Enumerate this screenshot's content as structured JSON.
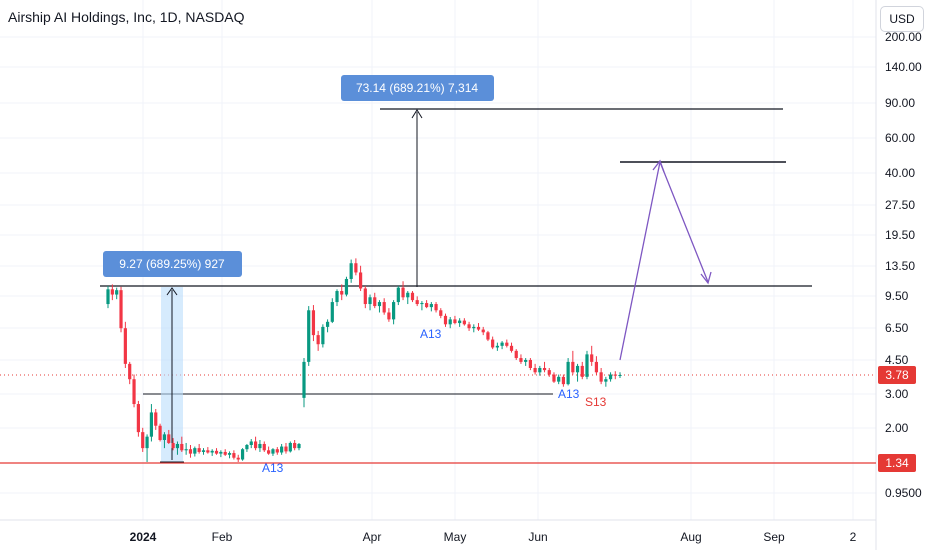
{
  "header": {
    "title": "Airship AI Holdings, Inc, 1D, NASDAQ",
    "currency": "USD"
  },
  "chart_data": {
    "type": "candlestick",
    "title": "Airship AI Holdings, Inc, 1D, NASDAQ",
    "y_scale": "log",
    "y_ticks": [
      "200.00",
      "140.00",
      "90.00",
      "60.00",
      "40.00",
      "27.50",
      "19.50",
      "13.50",
      "9.50",
      "6.50",
      "4.50",
      "3.00",
      "2.00",
      "1.34",
      "0.9500"
    ],
    "x_ticks": [
      "2024",
      "Feb",
      "Apr",
      "May",
      "Jun",
      "Aug",
      "Sep",
      "2"
    ],
    "last_price": "3.78",
    "support_line": "1.34",
    "measures": [
      {
        "label": "9.27 (689.25%) 927"
      },
      {
        "label": "73.14 (689.21%) 7,314"
      }
    ],
    "markers": [
      {
        "text": "A13",
        "color": "#2962ff"
      },
      {
        "text": "A13",
        "color": "#2962ff"
      },
      {
        "text": "A13",
        "color": "#2962ff"
      },
      {
        "text": "S13",
        "color": "#e53935"
      }
    ],
    "candles": [
      [
        8.6,
        10.6,
        8.2,
        10.2
      ],
      [
        10.2,
        10.8,
        9.0,
        9.6
      ],
      [
        9.6,
        10.4,
        9.1,
        10.1
      ],
      [
        10.1,
        10.5,
        6.2,
        6.5
      ],
      [
        6.5,
        7.0,
        4.1,
        4.3
      ],
      [
        4.3,
        4.4,
        3.4,
        3.6
      ],
      [
        3.6,
        3.8,
        2.6,
        2.7
      ],
      [
        2.7,
        2.8,
        1.85,
        1.95
      ],
      [
        1.95,
        2.05,
        1.55,
        1.62
      ],
      [
        1.62,
        1.9,
        1.38,
        1.85
      ],
      [
        1.85,
        2.7,
        1.75,
        2.45
      ],
      [
        2.45,
        2.55,
        2.0,
        2.1
      ],
      [
        2.1,
        2.15,
        1.75,
        1.78
      ],
      [
        1.78,
        1.95,
        1.62,
        1.9
      ],
      [
        1.9,
        2.0,
        1.7,
        1.72
      ],
      [
        1.72,
        1.82,
        1.58,
        1.62
      ],
      [
        1.62,
        1.75,
        1.5,
        1.7
      ],
      [
        1.7,
        1.85,
        1.55,
        1.58
      ],
      [
        1.58,
        1.72,
        1.5,
        1.6
      ],
      [
        1.6,
        1.68,
        1.45,
        1.52
      ],
      [
        1.52,
        1.65,
        1.47,
        1.62
      ],
      [
        1.62,
        1.7,
        1.52,
        1.55
      ],
      [
        1.55,
        1.62,
        1.5,
        1.58
      ],
      [
        1.58,
        1.64,
        1.52,
        1.54
      ],
      [
        1.54,
        1.6,
        1.48,
        1.57
      ],
      [
        1.57,
        1.62,
        1.5,
        1.52
      ],
      [
        1.52,
        1.58,
        1.46,
        1.55
      ],
      [
        1.55,
        1.6,
        1.48,
        1.5
      ],
      [
        1.5,
        1.56,
        1.44,
        1.53
      ],
      [
        1.53,
        1.58,
        1.42,
        1.45
      ],
      [
        1.45,
        1.5,
        1.38,
        1.42
      ],
      [
        1.42,
        1.62,
        1.4,
        1.6
      ],
      [
        1.6,
        1.7,
        1.55,
        1.68
      ],
      [
        1.68,
        1.8,
        1.62,
        1.75
      ],
      [
        1.75,
        1.85,
        1.58,
        1.62
      ],
      [
        1.62,
        1.78,
        1.55,
        1.7
      ],
      [
        1.7,
        1.75,
        1.55,
        1.58
      ],
      [
        1.58,
        1.65,
        1.5,
        1.52
      ],
      [
        1.52,
        1.62,
        1.48,
        1.6
      ],
      [
        1.6,
        1.64,
        1.5,
        1.54
      ],
      [
        1.54,
        1.7,
        1.5,
        1.65
      ],
      [
        1.65,
        1.72,
        1.52,
        1.56
      ],
      [
        1.56,
        1.75,
        1.54,
        1.72
      ],
      [
        1.72,
        1.78,
        1.58,
        1.62
      ],
      [
        1.62,
        1.72,
        1.58,
        1.7
      ],
      [
        2.9,
        4.6,
        2.6,
        4.4
      ],
      [
        4.4,
        8.4,
        4.2,
        8.0
      ],
      [
        8.0,
        8.5,
        5.6,
        6.0
      ],
      [
        6.0,
        6.3,
        5.0,
        5.4
      ],
      [
        5.4,
        6.8,
        5.2,
        6.6
      ],
      [
        6.6,
        7.2,
        6.2,
        7.0
      ],
      [
        7.0,
        9.2,
        6.9,
        8.8
      ],
      [
        8.8,
        10.2,
        8.4,
        10.0
      ],
      [
        10.0,
        10.8,
        9.0,
        9.6
      ],
      [
        9.6,
        11.8,
        9.4,
        11.5
      ],
      [
        11.5,
        14.4,
        11.0,
        13.8
      ],
      [
        13.8,
        14.6,
        12.0,
        12.4
      ],
      [
        12.4,
        13.4,
        10.0,
        10.3
      ],
      [
        10.3,
        10.6,
        8.2,
        8.6
      ],
      [
        8.6,
        9.6,
        8.0,
        9.3
      ],
      [
        9.3,
        9.8,
        8.2,
        8.4
      ],
      [
        8.4,
        9.0,
        7.8,
        8.8
      ],
      [
        8.8,
        9.2,
        7.6,
        7.8
      ],
      [
        7.8,
        8.2,
        7.0,
        7.2
      ],
      [
        7.2,
        9.0,
        6.8,
        8.8
      ],
      [
        8.8,
        10.6,
        8.5,
        10.4
      ],
      [
        10.4,
        11.2,
        9.0,
        9.3
      ],
      [
        9.3,
        10.0,
        8.6,
        9.8
      ],
      [
        9.8,
        10.0,
        8.8,
        9.0
      ],
      [
        9.0,
        9.4,
        8.4,
        8.6
      ],
      [
        8.6,
        8.9,
        8.0,
        8.7
      ],
      [
        8.7,
        9.0,
        8.2,
        8.3
      ],
      [
        8.3,
        8.8,
        7.9,
        8.6
      ],
      [
        8.6,
        8.8,
        7.8,
        8.0
      ],
      [
        8.0,
        8.2,
        7.3,
        7.5
      ],
      [
        7.5,
        7.7,
        6.6,
        6.8
      ],
      [
        6.8,
        7.4,
        6.5,
        7.2
      ],
      [
        7.2,
        7.5,
        6.8,
        6.9
      ],
      [
        6.9,
        7.3,
        6.6,
        7.1
      ],
      [
        7.1,
        7.3,
        6.7,
        6.8
      ],
      [
        6.8,
        7.0,
        6.3,
        6.5
      ],
      [
        6.5,
        6.8,
        6.2,
        6.6
      ],
      [
        6.6,
        6.9,
        6.3,
        6.4
      ],
      [
        6.4,
        6.6,
        6.0,
        6.2
      ],
      [
        6.2,
        6.3,
        5.6,
        5.7
      ],
      [
        5.7,
        5.9,
        5.1,
        5.2
      ],
      [
        5.2,
        5.5,
        5.0,
        5.3
      ],
      [
        5.3,
        5.6,
        5.1,
        5.5
      ],
      [
        5.5,
        5.7,
        5.2,
        5.3
      ],
      [
        5.3,
        5.5,
        4.9,
        5.0
      ],
      [
        5.0,
        5.1,
        4.5,
        4.6
      ],
      [
        4.6,
        4.8,
        4.3,
        4.4
      ],
      [
        4.4,
        4.6,
        4.2,
        4.5
      ],
      [
        4.5,
        4.6,
        4.0,
        4.1
      ],
      [
        4.1,
        4.3,
        3.8,
        3.9
      ],
      [
        3.9,
        4.2,
        3.75,
        4.1
      ],
      [
        4.1,
        4.4,
        3.9,
        4.0
      ],
      [
        4.0,
        4.1,
        3.7,
        3.8
      ],
      [
        3.8,
        3.9,
        3.45,
        3.5
      ],
      [
        3.5,
        3.8,
        3.4,
        3.7
      ],
      [
        3.7,
        3.8,
        3.3,
        3.4
      ],
      [
        3.4,
        4.6,
        3.35,
        4.4
      ],
      [
        4.4,
        5.0,
        3.8,
        3.9
      ],
      [
        3.9,
        4.3,
        3.5,
        4.2
      ],
      [
        4.2,
        4.4,
        3.6,
        3.7
      ],
      [
        3.7,
        5.0,
        3.6,
        4.8
      ],
      [
        4.8,
        5.3,
        4.2,
        4.4
      ],
      [
        4.4,
        4.7,
        3.8,
        3.9
      ],
      [
        3.9,
        4.1,
        3.4,
        3.5
      ],
      [
        3.5,
        3.7,
        3.3,
        3.6
      ],
      [
        3.6,
        3.9,
        3.5,
        3.8
      ],
      [
        3.8,
        3.95,
        3.6,
        3.75
      ],
      [
        3.75,
        3.9,
        3.65,
        3.78
      ]
    ]
  }
}
